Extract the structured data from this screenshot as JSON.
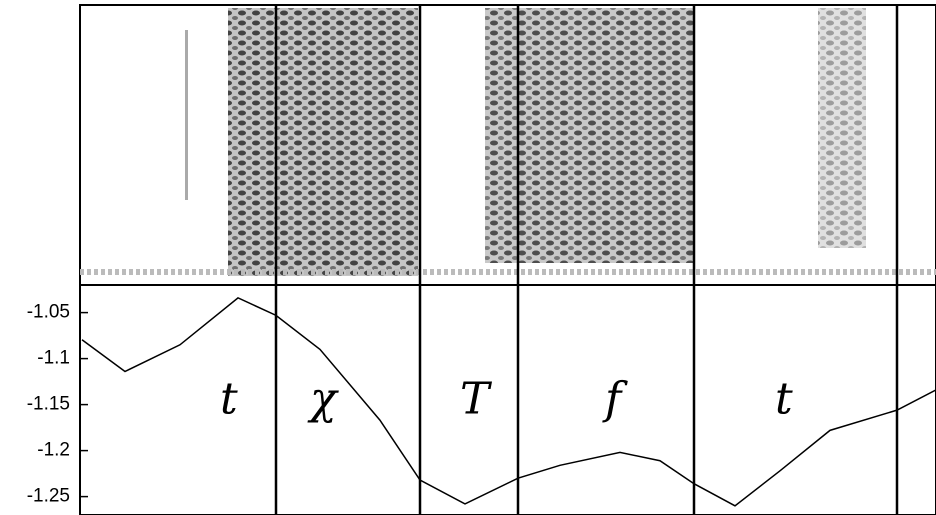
{
  "chart_data": {
    "type": "line",
    "x": [
      2,
      45,
      100,
      158,
      196,
      240,
      300,
      340,
      385,
      438,
      480,
      540,
      580,
      614,
      655,
      700,
      750,
      817,
      856
    ],
    "series": [
      {
        "color": "#000000",
        "values": [
          -1.0795,
          -1.114,
          -1.085,
          -1.034,
          -1.053,
          -1.09,
          -1.167,
          -1.232,
          -1.258,
          -1.23,
          -1.216,
          -1.202,
          -1.211,
          -1.236,
          -1.26,
          -1.222,
          -1.178,
          -1.156,
          -1.134
        ]
      }
    ],
    "xlim": [
      0,
      856
    ],
    "ylim": [
      -1.27,
      -1.02
    ],
    "yticks": [
      -1.05,
      -1.1,
      -1.15,
      -1.2,
      -1.25
    ],
    "boundaries": [
      196,
      340,
      438,
      614,
      817
    ],
    "segments": [
      {
        "label": "t",
        "x": 140
      },
      {
        "label": "χ",
        "x": 230
      },
      {
        "label": "T",
        "x": 380
      },
      {
        "label": "f",
        "x": 525
      },
      {
        "label": "t",
        "x": 695
      }
    ]
  }
}
